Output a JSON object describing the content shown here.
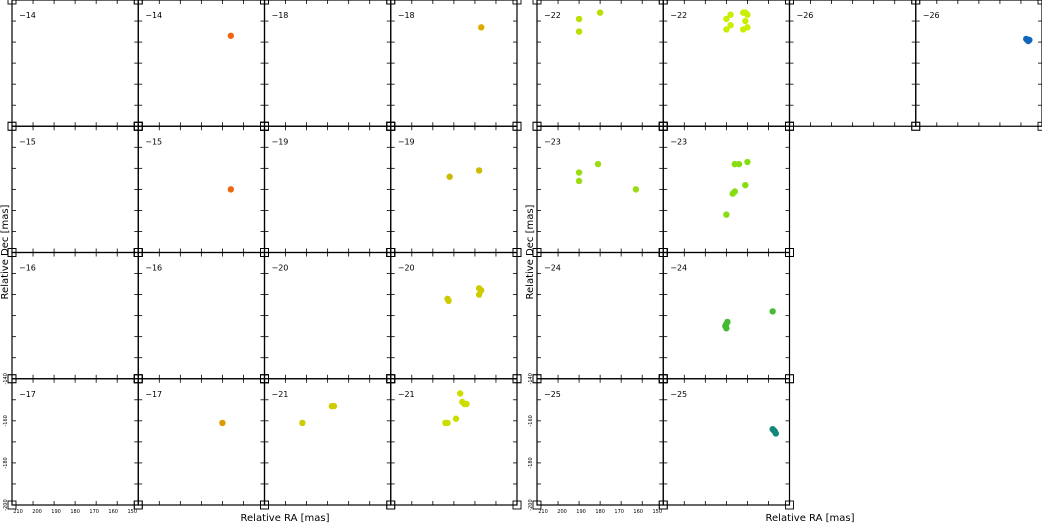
{
  "chart_data": {
    "type": "scatter",
    "xlabel": "Relative RA [mas]",
    "ylabel": "Relative Dec [mas]",
    "xlim": [
      210,
      150
    ],
    "ylim": [
      -200,
      -140
    ],
    "x_ticks": [
      "210",
      "200",
      "190",
      "180",
      "170",
      "160",
      "150"
    ],
    "y_ticks": [
      "-140",
      "-160",
      "-180",
      "-200"
    ],
    "panels": [
      {
        "label": "−14",
        "group": 0,
        "row": 0,
        "col": 0,
        "points": []
      },
      {
        "label": "−14",
        "group": 0,
        "row": 0,
        "col": 1,
        "color": "#ee6611",
        "points": [
          [
            166,
            -157
          ]
        ]
      },
      {
        "label": "−18",
        "group": 0,
        "row": 0,
        "col": 2,
        "points": []
      },
      {
        "label": "−18",
        "group": 0,
        "row": 0,
        "col": 3,
        "color": "#ddaa00",
        "points": [
          [
            167,
            -153
          ]
        ]
      },
      {
        "label": "−15",
        "group": 0,
        "row": 1,
        "col": 0,
        "points": []
      },
      {
        "label": "−15",
        "group": 0,
        "row": 1,
        "col": 1,
        "color": "#ee6611",
        "points": [
          [
            166,
            -170
          ]
        ]
      },
      {
        "label": "−19",
        "group": 0,
        "row": 1,
        "col": 2,
        "points": []
      },
      {
        "label": "−19",
        "group": 0,
        "row": 1,
        "col": 3,
        "color": "#ccbb00",
        "points": [
          [
            182,
            -164
          ],
          [
            168,
            -161
          ]
        ]
      },
      {
        "label": "−16",
        "group": 0,
        "row": 2,
        "col": 0,
        "points": []
      },
      {
        "label": "−16",
        "group": 0,
        "row": 2,
        "col": 1,
        "points": []
      },
      {
        "label": "−20",
        "group": 0,
        "row": 2,
        "col": 2,
        "points": []
      },
      {
        "label": "−20",
        "group": 0,
        "row": 2,
        "col": 3,
        "color": "#cccc00",
        "points": [
          [
            183,
            -162
          ],
          [
            182.5,
            -163
          ],
          [
            168,
            -157
          ],
          [
            167,
            -158
          ],
          [
            168,
            -160
          ]
        ]
      },
      {
        "label": "−17",
        "group": 0,
        "row": 3,
        "col": 0,
        "points": []
      },
      {
        "label": "−17",
        "group": 0,
        "row": 3,
        "col": 1,
        "color": "#dd9900",
        "points": [
          [
            170,
            -161
          ]
        ]
      },
      {
        "label": "−21",
        "group": 0,
        "row": 3,
        "col": 2,
        "color": "#cccc00",
        "points": [
          [
            178,
            -153
          ],
          [
            177,
            -153
          ],
          [
            192,
            -161
          ]
        ]
      },
      {
        "label": "−21",
        "group": 0,
        "row": 3,
        "col": 3,
        "color": "#ccdd00",
        "points": [
          [
            184,
            -161
          ],
          [
            183,
            -161
          ],
          [
            175,
            -152
          ],
          [
            176,
            -151
          ],
          [
            174,
            -152
          ],
          [
            177,
            -147
          ],
          [
            179,
            -159
          ]
        ]
      },
      {
        "label": "−22",
        "group": 1,
        "row": 0,
        "col": 0,
        "color": "#bbdd00",
        "points": [
          [
            190,
            -155
          ],
          [
            190,
            -149
          ],
          [
            180,
            -146
          ]
        ]
      },
      {
        "label": "−22",
        "group": 1,
        "row": 0,
        "col": 1,
        "color": "#ccee00",
        "points": [
          [
            180,
            -154
          ],
          [
            178,
            -152
          ],
          [
            180,
            -149
          ],
          [
            178,
            -147
          ],
          [
            172,
            -146
          ],
          [
            171,
            -146
          ],
          [
            170,
            -147
          ],
          [
            170,
            -153
          ],
          [
            172,
            -154
          ],
          [
            171,
            -150
          ]
        ]
      },
      {
        "label": "−26",
        "group": 1,
        "row": 0,
        "col": 2,
        "points": []
      },
      {
        "label": "−26",
        "group": 1,
        "row": 0,
        "col": 3,
        "color": "#1166bb",
        "points": [
          [
            157,
            -159
          ],
          [
            156.5,
            -159.5
          ],
          [
            157.5,
            -158.5
          ],
          [
            156,
            -159
          ]
        ]
      },
      {
        "label": "−23",
        "group": 1,
        "row": 1,
        "col": 0,
        "color": "#99dd11",
        "points": [
          [
            190,
            -162
          ],
          [
            190,
            -166
          ],
          [
            181,
            -158
          ],
          [
            163,
            -170
          ]
        ]
      },
      {
        "label": "−23",
        "group": 1,
        "row": 1,
        "col": 1,
        "color": "#88dd11",
        "points": [
          [
            176,
            -158
          ],
          [
            174,
            -158
          ],
          [
            170,
            -157
          ],
          [
            177,
            -172
          ],
          [
            176,
            -171
          ],
          [
            180,
            -182
          ],
          [
            171,
            -168
          ]
        ]
      },
      {
        "label": "−24",
        "group": 1,
        "row": 2,
        "col": 0,
        "points": []
      },
      {
        "label": "−24",
        "group": 1,
        "row": 2,
        "col": 1,
        "color": "#44bb33",
        "points": [
          [
            180,
            -174
          ],
          [
            180.5,
            -175
          ],
          [
            179.5,
            -173
          ],
          [
            180,
            -176
          ],
          [
            158,
            -168
          ]
        ]
      },
      {
        "label": "−25",
        "group": 1,
        "row": 3,
        "col": 0,
        "points": []
      },
      {
        "label": "−25",
        "group": 1,
        "row": 3,
        "col": 1,
        "color": "#118877",
        "points": [
          [
            158,
            -164
          ],
          [
            157,
            -165
          ],
          [
            156.5,
            -166
          ],
          [
            157.5,
            -164.5
          ]
        ]
      }
    ]
  }
}
